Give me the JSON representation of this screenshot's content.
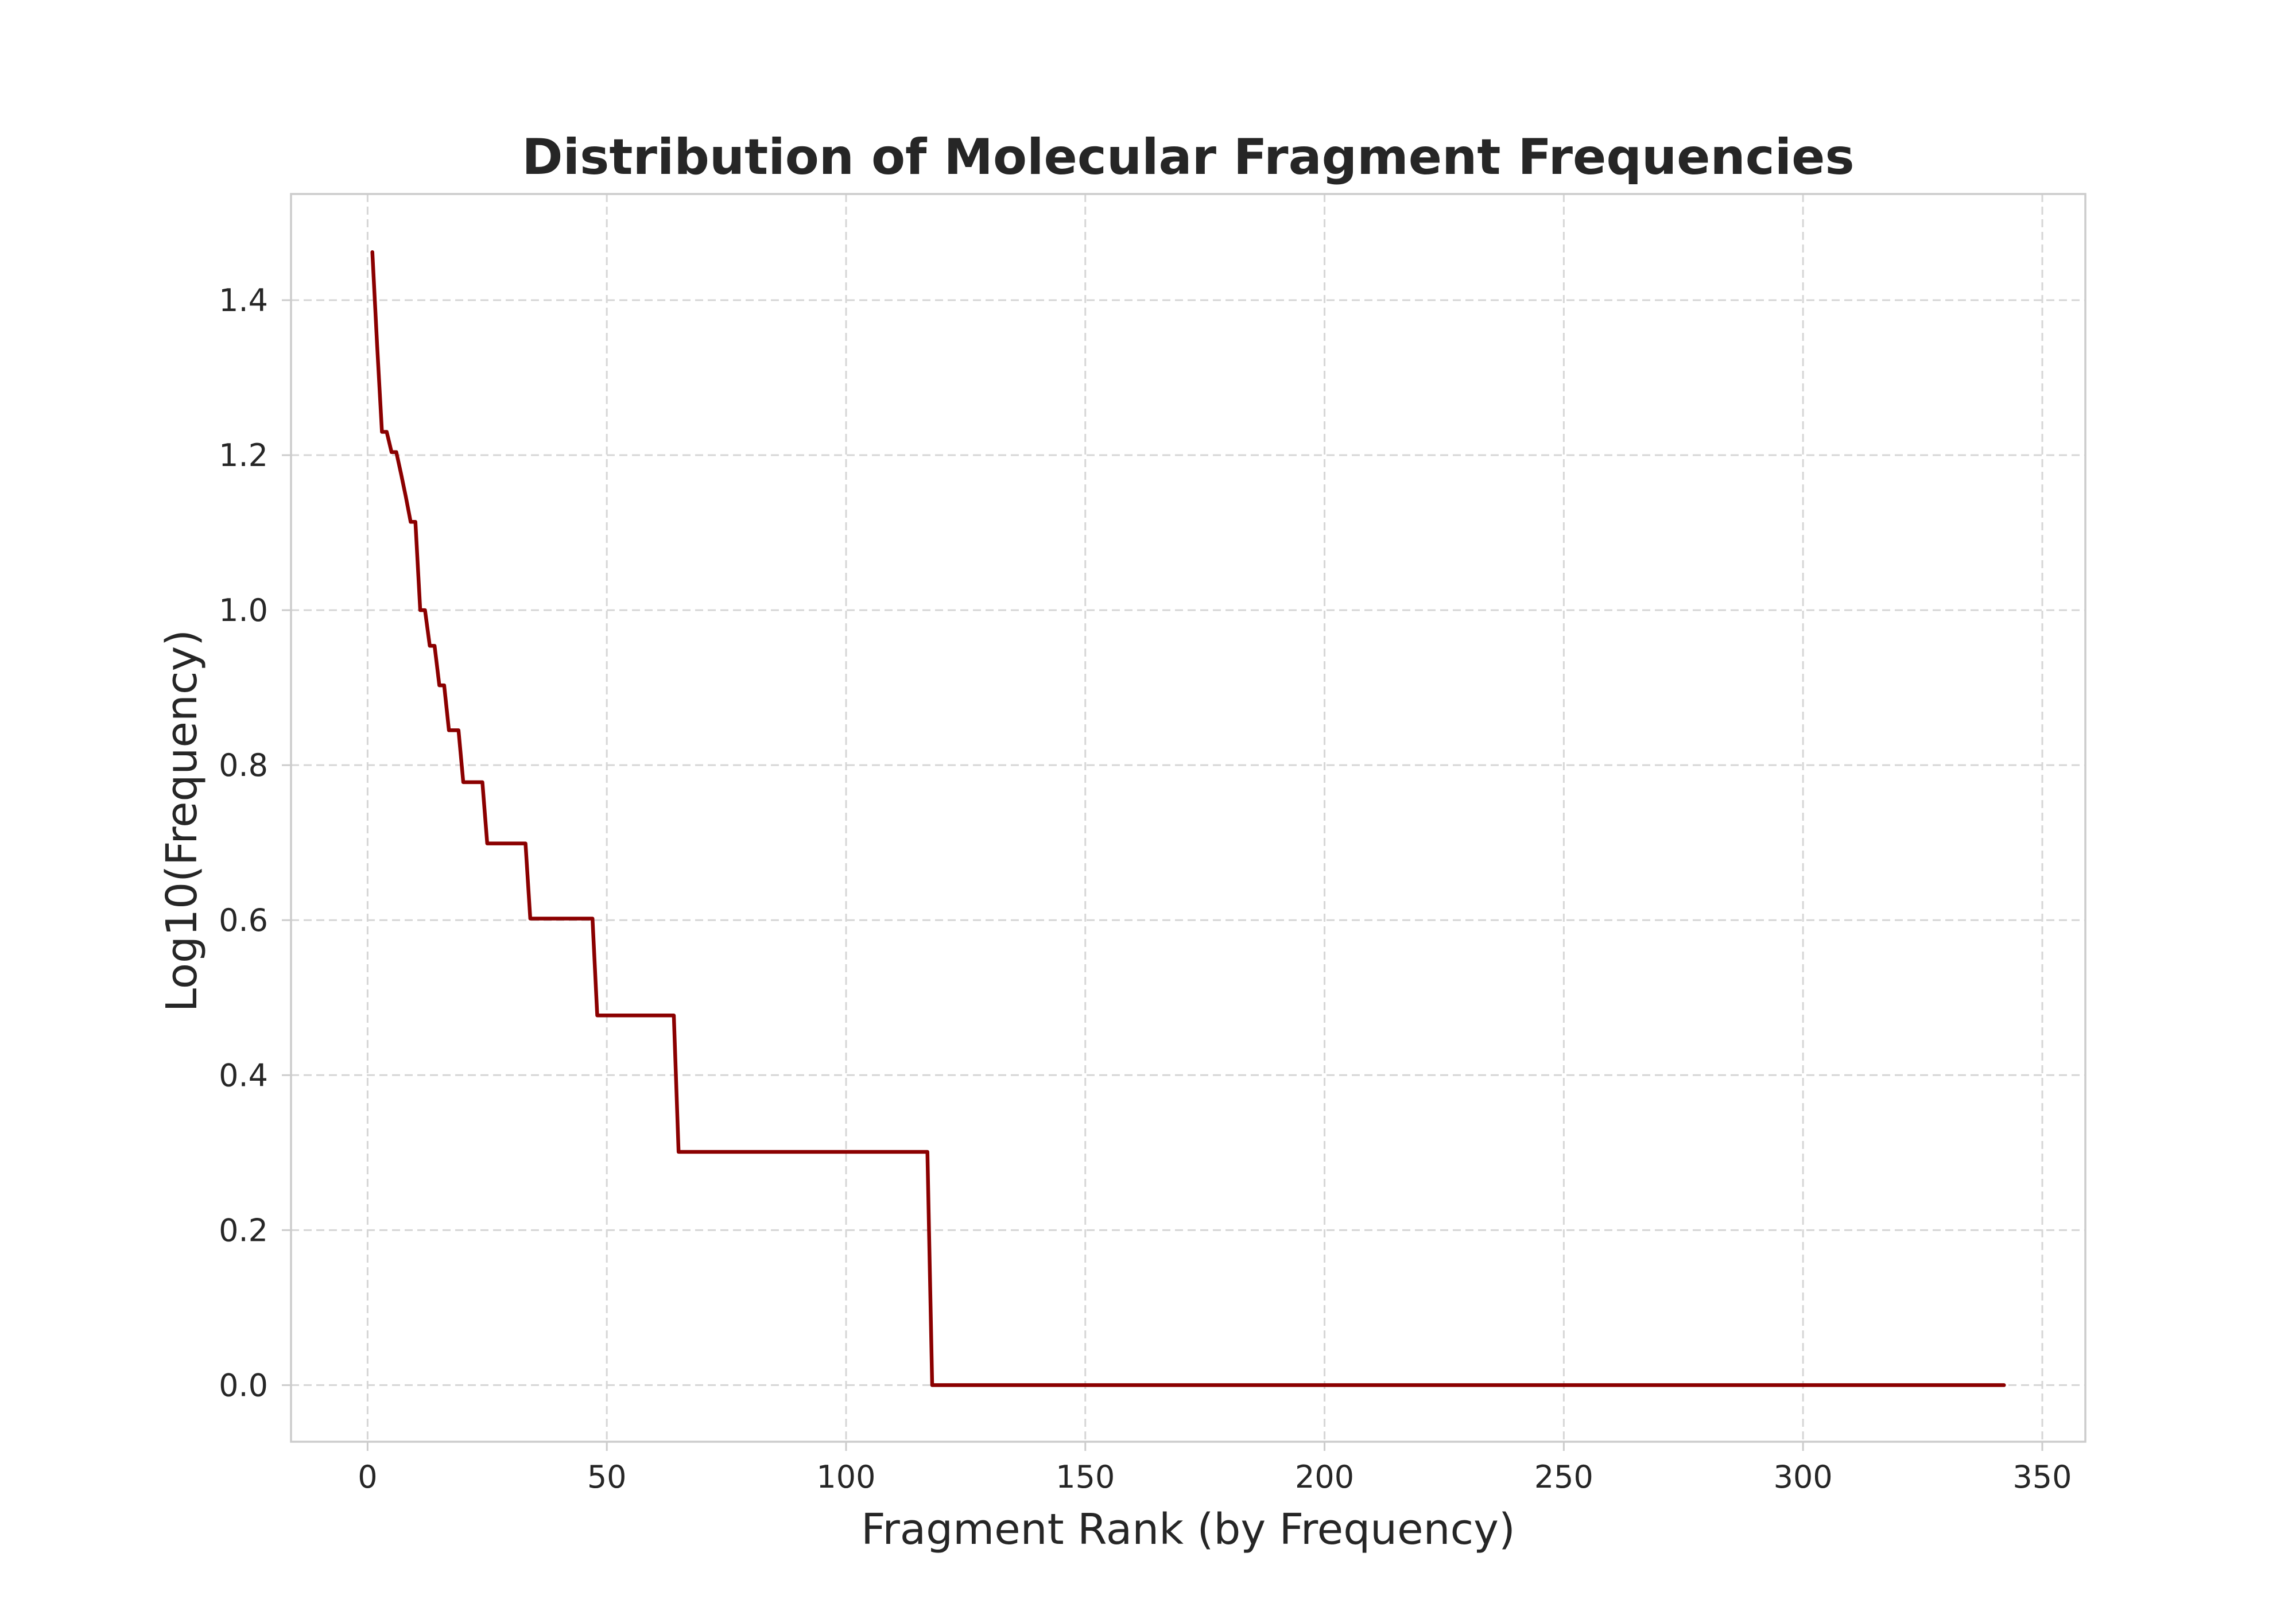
{
  "chart_data": {
    "type": "line",
    "title": "Distribution of Molecular Fragment Frequencies",
    "xlabel": "Fragment Rank (by Frequency)",
    "ylabel": "Log10(Frequency)",
    "xlim": [
      -16,
      359
    ],
    "ylim": [
      -0.073,
      1.537
    ],
    "x_ticks": [
      0,
      50,
      100,
      150,
      200,
      250,
      300,
      350
    ],
    "y_ticks": [
      0.0,
      0.2,
      0.4,
      0.6,
      0.8,
      1.0,
      1.2,
      1.4
    ],
    "y_tick_labels": [
      "0.0",
      "0.2",
      "0.4",
      "0.6",
      "0.8",
      "1.0",
      "1.2",
      "1.4"
    ],
    "grid": true,
    "legend": false,
    "series": [
      {
        "color": "#8b0000",
        "points": [
          [
            1,
            1.462
          ],
          [
            2,
            1.342
          ],
          [
            3,
            1.23
          ],
          [
            4,
            1.23
          ],
          [
            5,
            1.204
          ],
          [
            6,
            1.204
          ],
          [
            7,
            1.176
          ],
          [
            8,
            1.146
          ],
          [
            9,
            1.114
          ],
          [
            10,
            1.114
          ],
          [
            11,
            1.0
          ],
          [
            12,
            1.0
          ],
          [
            13,
            0.954
          ],
          [
            14,
            0.954
          ],
          [
            15,
            0.903
          ],
          [
            16,
            0.903
          ],
          [
            17,
            0.845
          ],
          [
            18,
            0.845
          ],
          [
            19,
            0.845
          ],
          [
            20,
            0.778
          ],
          [
            21,
            0.778
          ],
          [
            22,
            0.778
          ],
          [
            23,
            0.778
          ],
          [
            24,
            0.778
          ],
          [
            25,
            0.699
          ],
          [
            33,
            0.699
          ],
          [
            34,
            0.602
          ],
          [
            47,
            0.602
          ],
          [
            48,
            0.477
          ],
          [
            64,
            0.477
          ],
          [
            65,
            0.301
          ],
          [
            117,
            0.301
          ],
          [
            118,
            0.0
          ],
          [
            342,
            0.0
          ]
        ]
      }
    ]
  }
}
